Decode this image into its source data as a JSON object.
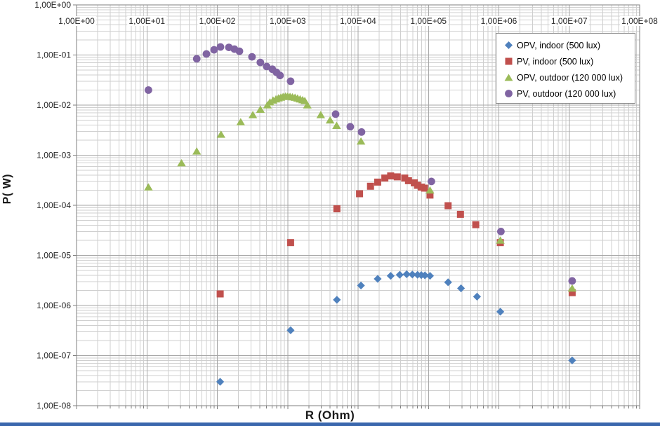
{
  "page": {
    "background": "#ffffff",
    "bottom_bar_color": "#3a67ad"
  },
  "chart_data": {
    "type": "scatter",
    "title": "",
    "xlabel": "R (Ohm)",
    "ylabel": "P( W)",
    "x_axis": {
      "label": "R (Ohm)",
      "scale": "log",
      "min": 1,
      "max": 100000000,
      "tick_labels": [
        "1,00E+00",
        "1,00E+01",
        "1,00E+02",
        "1,00E+03",
        "1,00E+04",
        "1,00E+05",
        "1,00E+06",
        "1,00E+07",
        "1,00E+08"
      ],
      "tick_labels_position": "inside-top"
    },
    "y_axis": {
      "label": "P( W)",
      "scale": "log",
      "min": 1e-08,
      "max": 1,
      "tick_labels": [
        "1,00E+00",
        "1,00E-01",
        "1,00E-02",
        "1,00E-03",
        "1,00E-04",
        "1,00E-05",
        "1,00E-06",
        "1,00E-07",
        "1,00E-08"
      ]
    },
    "grid": {
      "major": true,
      "minor": true,
      "major_color": "#a6a6a6",
      "minor_color": "#cfcfcf",
      "border_color": "#7f7f7f"
    },
    "legend": {
      "position": "top-right",
      "border_color": "#898989",
      "background": "#ffffff"
    },
    "series": [
      {
        "name": "OPV, indoor (500 lux)",
        "marker": "diamond",
        "color": "#4F81BD",
        "points": [
          [
            110,
            3e-08
          ],
          [
            1100,
            3.2e-07
          ],
          [
            5000,
            1.3e-06
          ],
          [
            11000,
            2.5e-06
          ],
          [
            19000,
            3.4e-06
          ],
          [
            29000,
            3.9e-06
          ],
          [
            39000,
            4.1e-06
          ],
          [
            49000,
            4.2e-06
          ],
          [
            59000,
            4.15e-06
          ],
          [
            70000,
            4.1e-06
          ],
          [
            79000,
            4.05e-06
          ],
          [
            89000,
            4e-06
          ],
          [
            105000,
            3.9e-06
          ],
          [
            190000,
            2.9e-06
          ],
          [
            290000,
            2.2e-06
          ],
          [
            490000,
            1.5e-06
          ],
          [
            1050000.0,
            7.5e-07
          ],
          [
            11000000.0,
            8e-08
          ]
        ]
      },
      {
        "name": "PV, indoor (500 lux)",
        "marker": "square",
        "color": "#C0504D",
        "points": [
          [
            110,
            1.7e-06
          ],
          [
            1100,
            1.8e-05
          ],
          [
            5000,
            8.5e-05
          ],
          [
            10500,
            0.00017
          ],
          [
            15000,
            0.00024
          ],
          [
            19000,
            0.00029
          ],
          [
            24000,
            0.00035
          ],
          [
            29000,
            0.000385
          ],
          [
            36000,
            0.00037
          ],
          [
            46000,
            0.00035
          ],
          [
            52000,
            0.00031
          ],
          [
            63000,
            0.00028
          ],
          [
            70000,
            0.00025
          ],
          [
            79000,
            0.00023
          ],
          [
            88000,
            0.00022
          ],
          [
            105000,
            0.00016
          ],
          [
            190000,
            9.8e-05
          ],
          [
            285000,
            6.6e-05
          ],
          [
            470000,
            4.1e-05
          ],
          [
            1050000.0,
            1.8e-05
          ],
          [
            11000000.0,
            1.8e-06
          ]
        ]
      },
      {
        "name": "OPV, outdoor (120 000 lux)",
        "marker": "triangle",
        "color": "#9BBB59",
        "points": [
          [
            10.5,
            0.00023
          ],
          [
            31,
            0.0007
          ],
          [
            51,
            0.0012
          ],
          [
            113,
            0.0026
          ],
          [
            215,
            0.0046
          ],
          [
            320,
            0.0064
          ],
          [
            410,
            0.0082
          ],
          [
            515,
            0.01
          ],
          [
            560,
            0.0115
          ],
          [
            620,
            0.0125
          ],
          [
            680,
            0.0132
          ],
          [
            740,
            0.0138
          ],
          [
            800,
            0.0143
          ],
          [
            860,
            0.0147
          ],
          [
            930,
            0.015
          ],
          [
            1000,
            0.015
          ],
          [
            1080,
            0.0148
          ],
          [
            1170,
            0.0145
          ],
          [
            1270,
            0.0142
          ],
          [
            1380,
            0.0137
          ],
          [
            1500,
            0.0132
          ],
          [
            1630,
            0.0127
          ],
          [
            1750,
            0.0122
          ],
          [
            1900,
            0.01
          ],
          [
            2950,
            0.0064
          ],
          [
            4000,
            0.005
          ],
          [
            4950,
            0.0039
          ],
          [
            11000,
            0.0019
          ],
          [
            105000,
            0.0002
          ],
          [
            1050000.0,
            2e-05
          ],
          [
            11000000.0,
            2.2e-06
          ]
        ]
      },
      {
        "name": "PV, outdoor (120 000 lux)",
        "marker": "circle",
        "color": "#8064A2",
        "points": [
          [
            10.5,
            0.02
          ],
          [
            51,
            0.084
          ],
          [
            70,
            0.105
          ],
          [
            90,
            0.127
          ],
          [
            111,
            0.145
          ],
          [
            146,
            0.142
          ],
          [
            175,
            0.131
          ],
          [
            206,
            0.119
          ],
          [
            311,
            0.092
          ],
          [
            409,
            0.071
          ],
          [
            503,
            0.059
          ],
          [
            605,
            0.052
          ],
          [
            694,
            0.045
          ],
          [
            778,
            0.039
          ],
          [
            1100,
            0.03
          ],
          [
            4800,
            0.0066
          ],
          [
            7750,
            0.0037
          ],
          [
            11200,
            0.0029
          ],
          [
            110000.0,
            0.0003
          ],
          [
            1070000.0,
            3e-05
          ],
          [
            11000000.0,
            3.1e-06
          ]
        ]
      }
    ]
  }
}
